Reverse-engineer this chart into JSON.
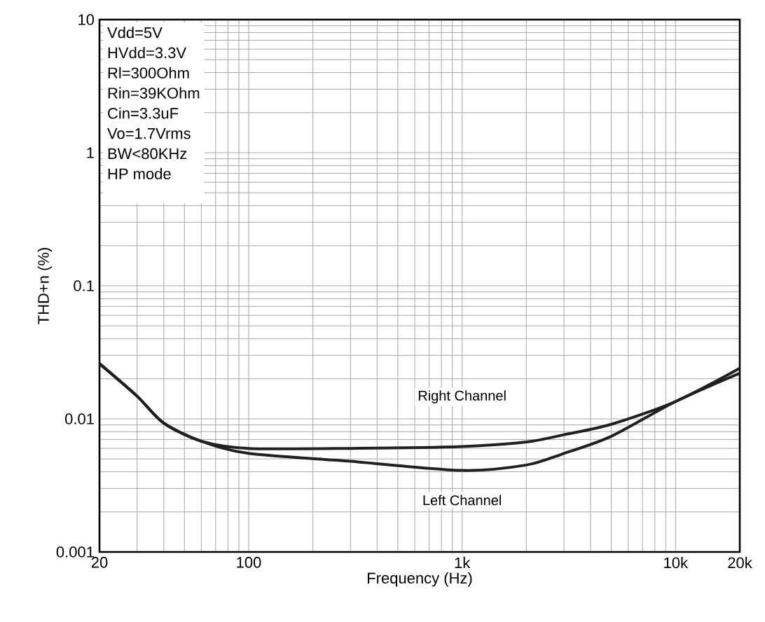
{
  "chart_data": {
    "type": "line",
    "xlabel": "Frequency (Hz)",
    "ylabel": "THD+n (%)",
    "log": "xy",
    "grid": true,
    "legend": false,
    "xlim": [
      20,
      20000
    ],
    "ylim": [
      0.001,
      10
    ],
    "xticks": [
      20,
      100,
      {
        "value": 1000,
        "label": "1k"
      },
      {
        "value": 10000,
        "label": "10k"
      },
      {
        "value": 20000,
        "label": "20k"
      }
    ],
    "yticks": [
      0.001,
      0.01,
      0.1,
      1,
      10
    ],
    "x": [
      20,
      30,
      40,
      60,
      100,
      300,
      1000,
      2000,
      3000,
      5000,
      10000,
      20000
    ],
    "series": [
      {
        "name": "Right Channel",
        "color": "#231f20",
        "values": [
          0.026,
          0.0148,
          0.0093,
          0.0068,
          0.006,
          0.006,
          0.0062,
          0.0067,
          0.0076,
          0.0091,
          0.0135,
          0.024
        ]
      },
      {
        "name": "Left Channel",
        "color": "#231f20",
        "values": [
          0.026,
          0.0148,
          0.0093,
          0.0068,
          0.0055,
          0.0048,
          0.0041,
          0.0045,
          0.0055,
          0.0074,
          0.0135,
          0.022
        ]
      }
    ],
    "annotations": [
      "Vdd=5V",
      "HVdd=3.3V",
      "Rl=300Ohm",
      "Rin=39KOhm",
      "Cin=3.3uF",
      "Vo=1.7Vrms",
      "BW<80KHz",
      "HP mode"
    ]
  }
}
